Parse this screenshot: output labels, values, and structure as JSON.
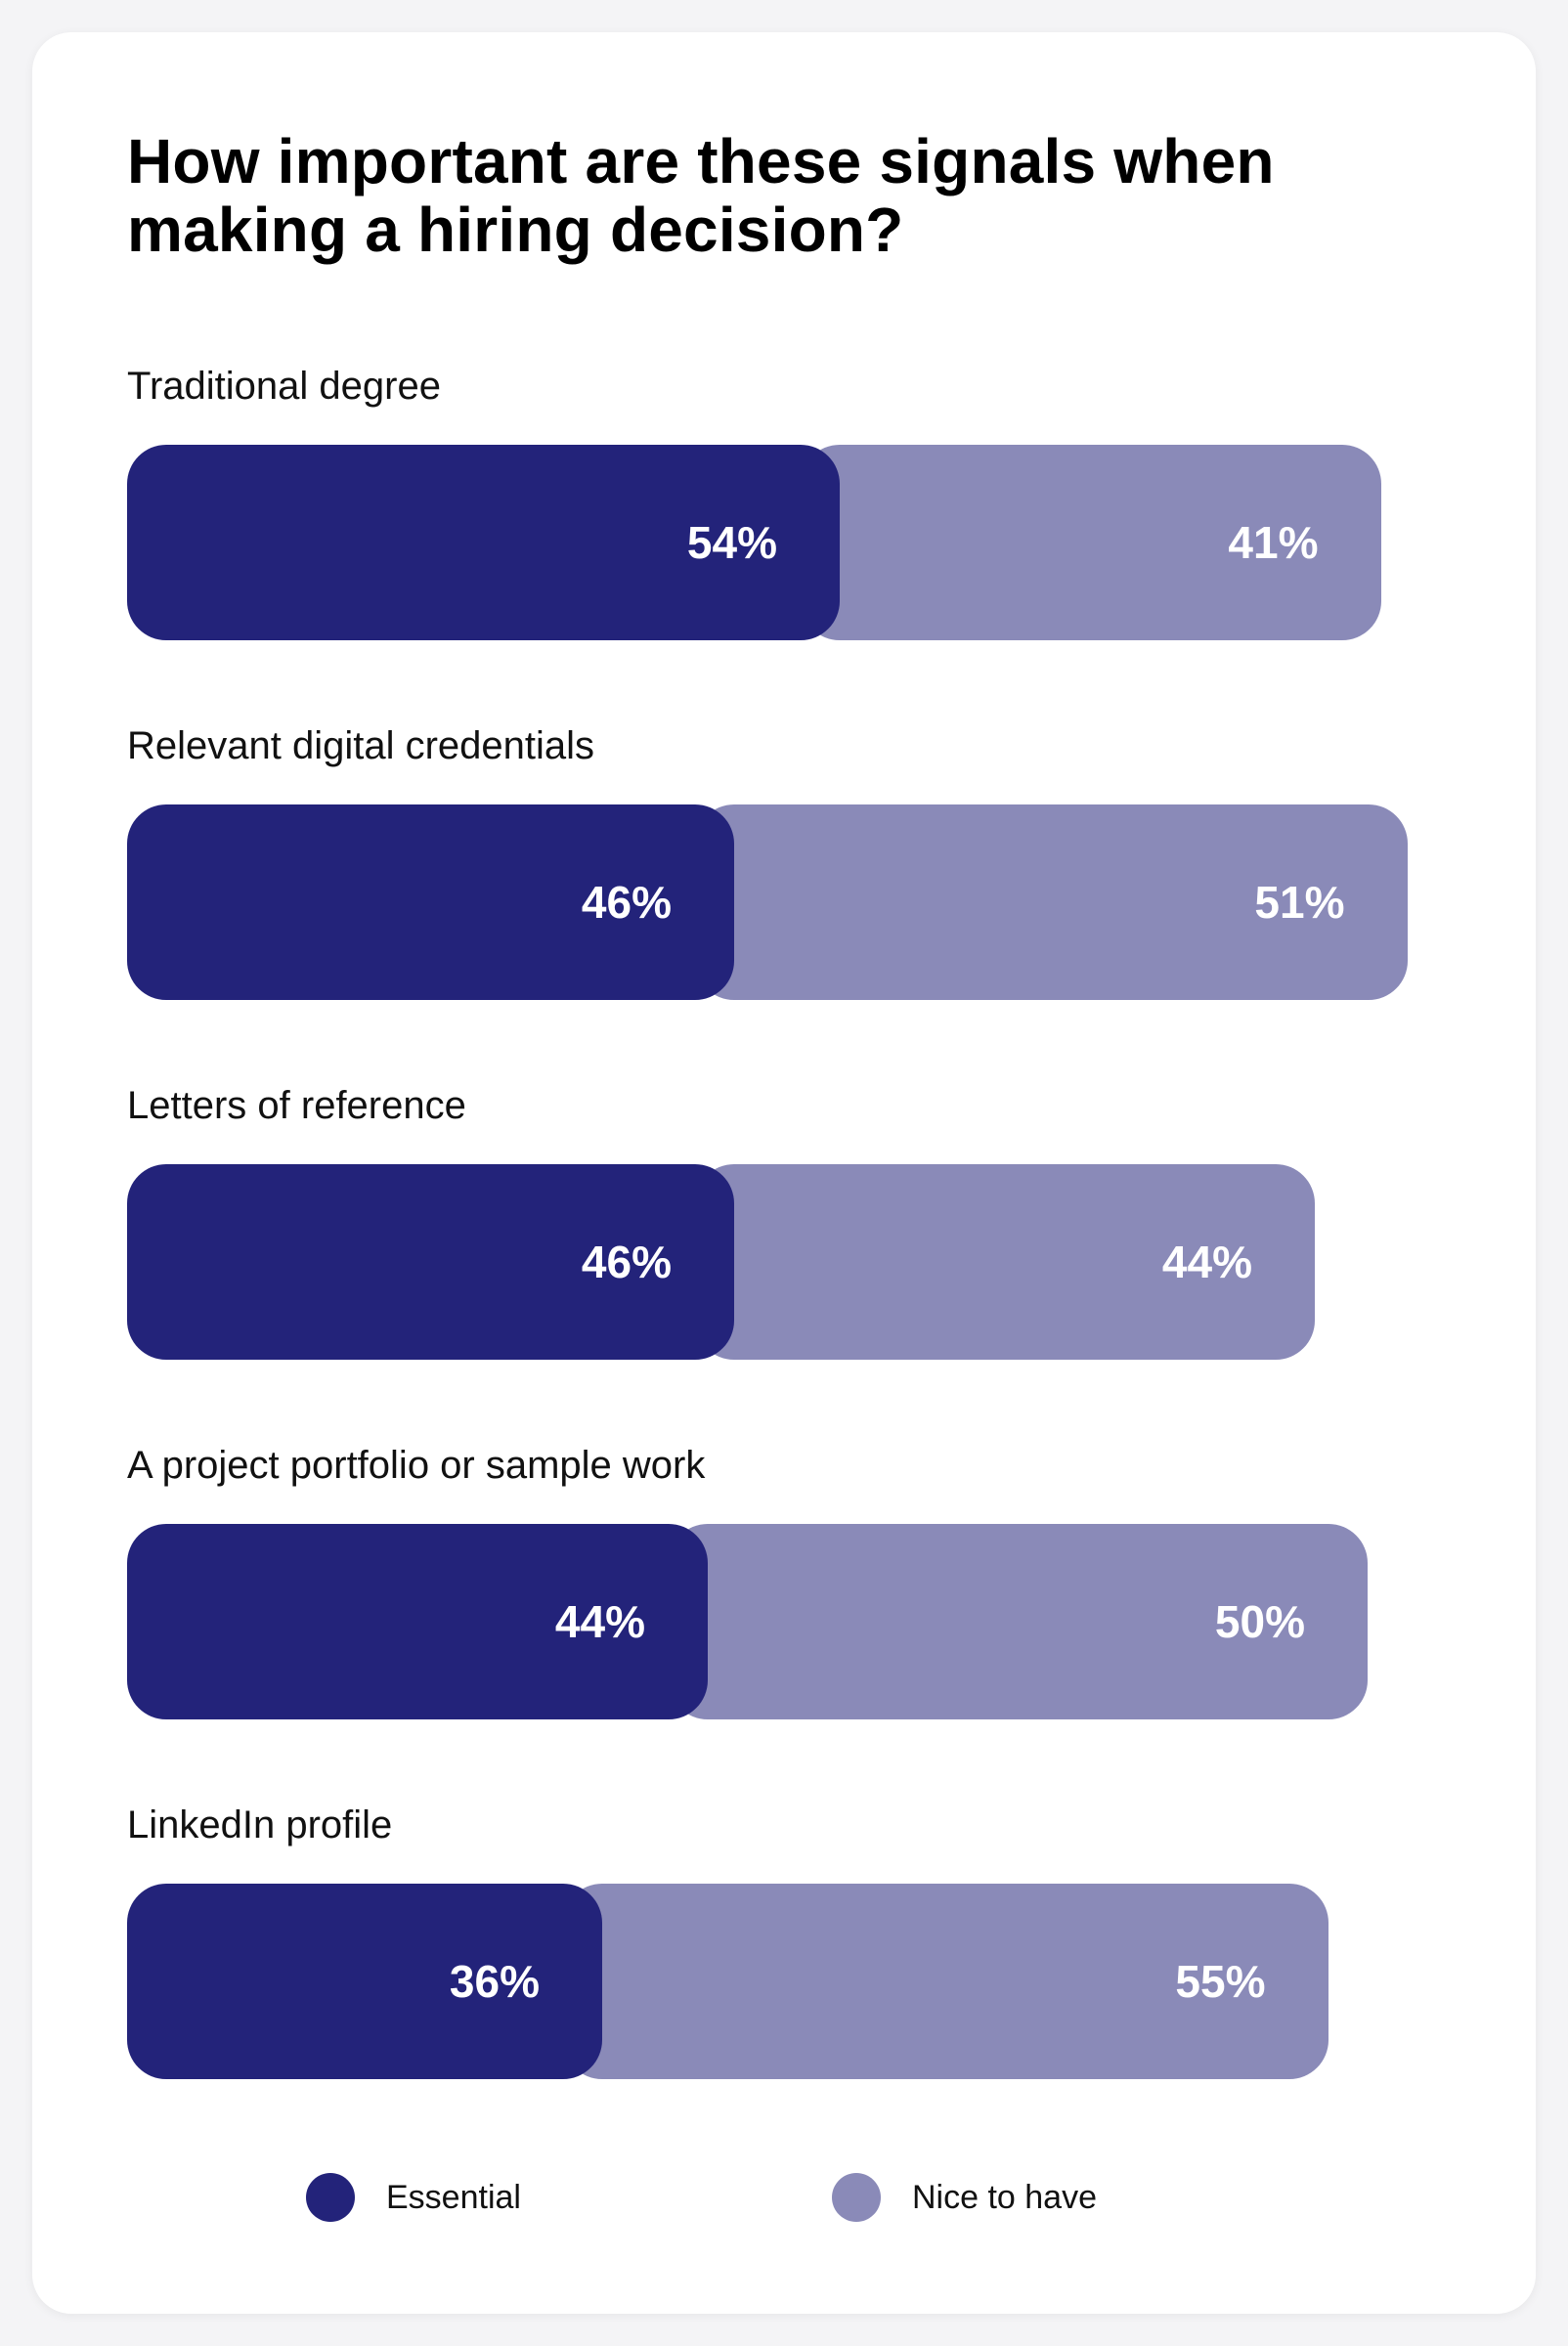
{
  "chart_data": {
    "type": "bar",
    "orientation": "horizontal",
    "stacked": true,
    "title": "How important are these signals when making a hiring decision?",
    "categories": [
      "Traditional degree",
      "Relevant digital credentials",
      "Letters of reference",
      "A project portfolio or sample work",
      "LinkedIn profile"
    ],
    "series": [
      {
        "name": "Essential",
        "color": "#23237a",
        "values": [
          54,
          46,
          46,
          44,
          36
        ],
        "labels": [
          "54%",
          "46%",
          "46%",
          "44%",
          "36%"
        ]
      },
      {
        "name": "Nice to have",
        "color": "#8a8ab8",
        "values": [
          41,
          51,
          44,
          50,
          55
        ],
        "labels": [
          "41%",
          "51%",
          "44%",
          "50%",
          "55%"
        ]
      }
    ],
    "value_unit": "%",
    "grid": false,
    "legend_position": "bottom"
  }
}
